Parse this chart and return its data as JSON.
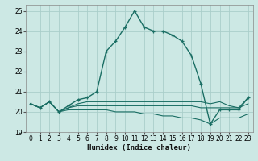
{
  "xlabel": "Humidex (Indice chaleur)",
  "bg_color": "#cce8e4",
  "grid_color": "#aaceca",
  "line_color": "#1a6e64",
  "xlim": [
    -0.5,
    23.5
  ],
  "ylim": [
    19,
    25.3
  ],
  "yticks": [
    19,
    20,
    21,
    22,
    23,
    24,
    25
  ],
  "xticks": [
    0,
    1,
    2,
    3,
    4,
    5,
    6,
    7,
    8,
    9,
    10,
    11,
    12,
    13,
    14,
    15,
    16,
    17,
    18,
    19,
    20,
    21,
    22,
    23
  ],
  "series": [
    [
      20.4,
      20.2,
      20.5,
      20.0,
      20.3,
      20.6,
      20.7,
      21.0,
      23.0,
      23.5,
      24.2,
      25.0,
      24.2,
      24.0,
      24.0,
      23.8,
      23.5,
      22.8,
      21.4,
      19.4,
      20.1,
      20.1,
      20.1,
      20.7
    ],
    [
      20.4,
      20.2,
      20.5,
      20.0,
      20.2,
      20.4,
      20.5,
      20.5,
      20.5,
      20.5,
      20.5,
      20.5,
      20.5,
      20.5,
      20.5,
      20.5,
      20.5,
      20.5,
      20.5,
      20.4,
      20.5,
      20.3,
      20.2,
      20.7
    ],
    [
      20.4,
      20.2,
      20.5,
      20.0,
      20.2,
      20.3,
      20.3,
      20.3,
      20.3,
      20.3,
      20.3,
      20.3,
      20.3,
      20.3,
      20.3,
      20.3,
      20.3,
      20.3,
      20.2,
      20.2,
      20.2,
      20.2,
      20.2,
      20.4
    ],
    [
      20.4,
      20.2,
      20.5,
      20.0,
      20.1,
      20.1,
      20.1,
      20.1,
      20.1,
      20.0,
      20.0,
      20.0,
      19.9,
      19.9,
      19.8,
      19.8,
      19.7,
      19.7,
      19.6,
      19.4,
      19.7,
      19.7,
      19.7,
      19.9
    ]
  ],
  "series_markers": [
    true,
    false,
    false,
    false
  ],
  "series_linewidths": [
    1.0,
    0.8,
    0.8,
    0.8
  ]
}
